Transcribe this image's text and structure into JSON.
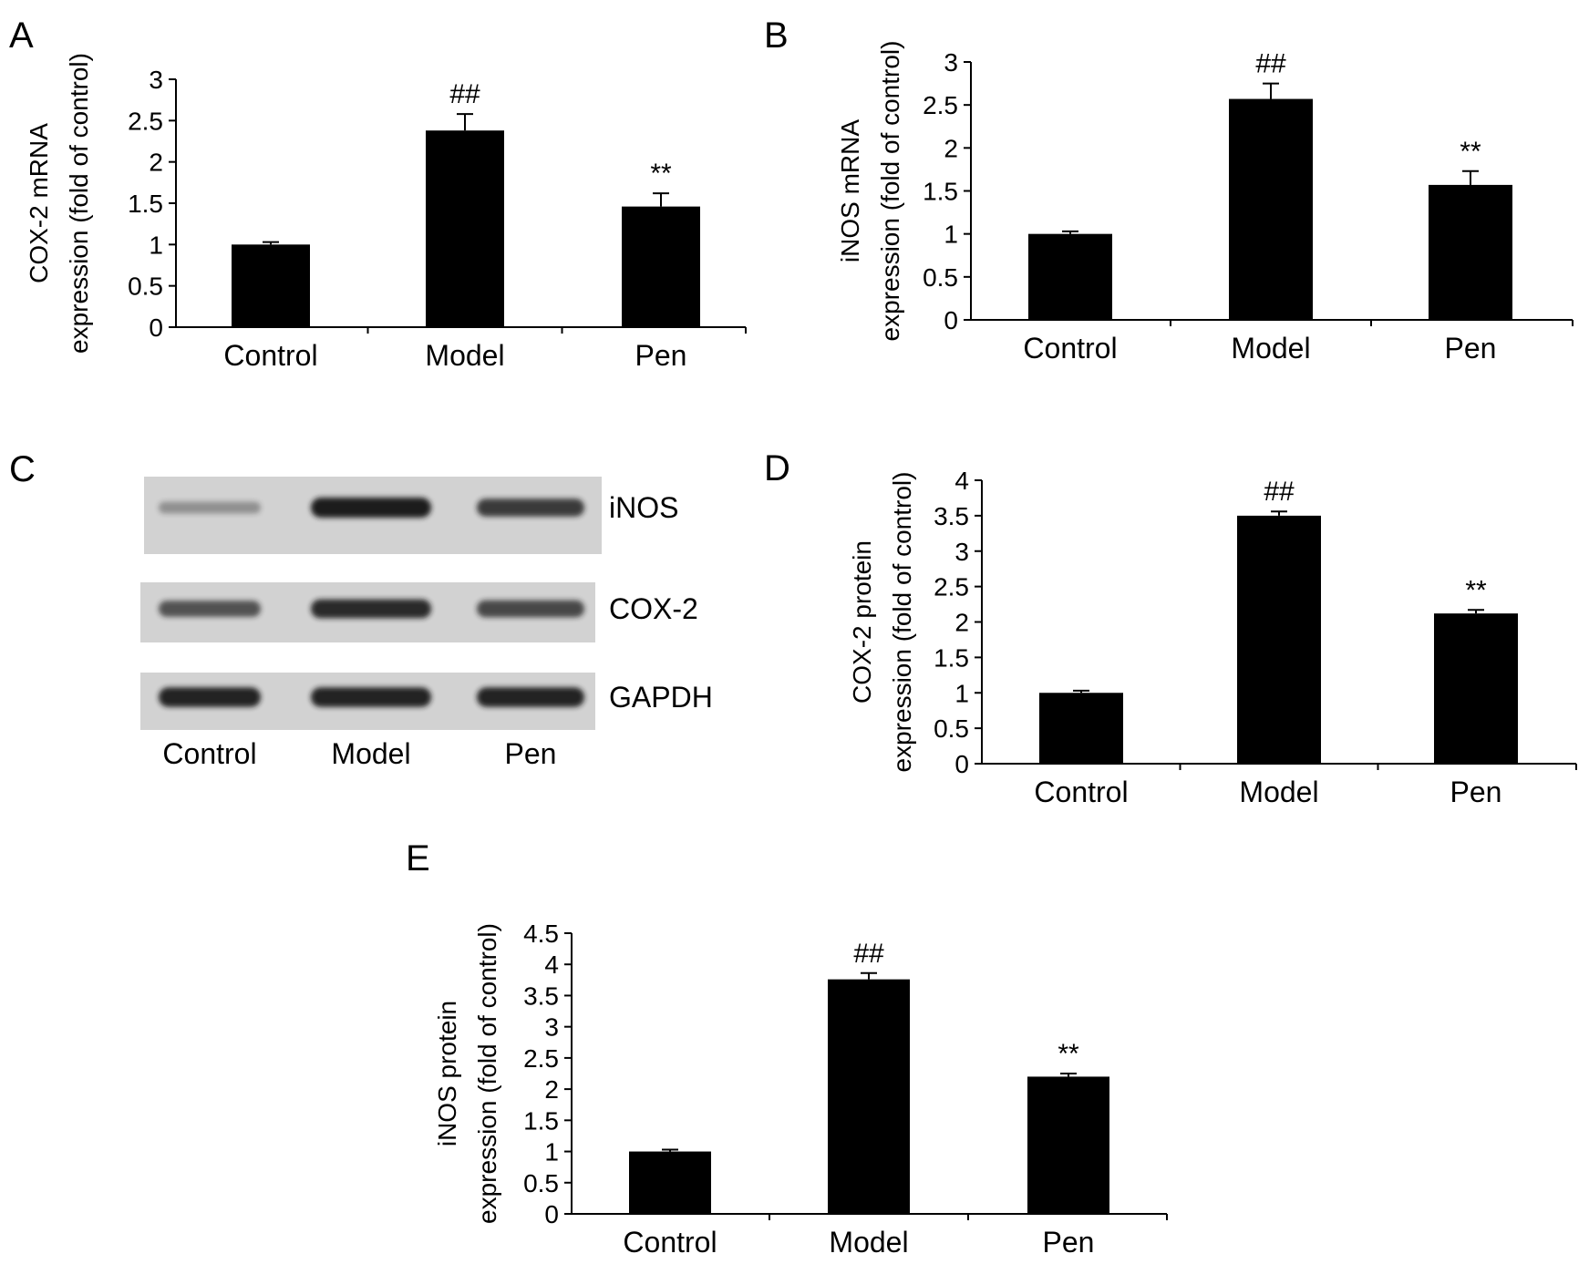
{
  "colors": {
    "bar": "#000000",
    "blot_bg": "#d2d2d2",
    "band": "#1a1a1a"
  },
  "chart_data": [
    {
      "panel": "A",
      "type": "bar",
      "categories": [
        "Control",
        "Model",
        "Pen"
      ],
      "values": [
        1.0,
        2.38,
        1.46
      ],
      "errors": [
        0.03,
        0.2,
        0.16
      ],
      "annotations": [
        "",
        "##",
        "**"
      ],
      "ylabel_lines": [
        "COX-2 mRNA",
        "expression (fold of control)"
      ],
      "ylim": [
        0,
        3
      ],
      "yticks": [
        0,
        0.5,
        1,
        1.5,
        2,
        2.5,
        3
      ]
    },
    {
      "panel": "B",
      "type": "bar",
      "categories": [
        "Control",
        "Model",
        "Pen"
      ],
      "values": [
        1.0,
        2.57,
        1.57
      ],
      "errors": [
        0.03,
        0.18,
        0.16
      ],
      "annotations": [
        "",
        "##",
        "**"
      ],
      "ylabel_lines": [
        "iNOS mRNA",
        "expression (fold of control)"
      ],
      "ylim": [
        0,
        3
      ],
      "yticks": [
        0,
        0.5,
        1,
        1.5,
        2,
        2.5,
        3
      ]
    },
    {
      "panel": "D",
      "type": "bar",
      "categories": [
        "Control",
        "Model",
        "Pen"
      ],
      "values": [
        1.0,
        3.5,
        2.12
      ],
      "errors": [
        0.03,
        0.06,
        0.05
      ],
      "annotations": [
        "",
        "##",
        "**"
      ],
      "ylabel_lines": [
        "COX-2 protein",
        "expression (fold of control)"
      ],
      "ylim": [
        0,
        4
      ],
      "yticks": [
        0,
        0.5,
        1,
        1.5,
        2,
        2.5,
        3,
        3.5,
        4
      ]
    },
    {
      "panel": "E",
      "type": "bar",
      "categories": [
        "Control",
        "Model",
        "Pen"
      ],
      "values": [
        1.0,
        3.76,
        2.2
      ],
      "errors": [
        0.03,
        0.1,
        0.05
      ],
      "annotations": [
        "",
        "##",
        "**"
      ],
      "ylabel_lines": [
        "iNOS protein",
        "expression (fold of control)"
      ],
      "ylim": [
        0,
        4.5
      ],
      "yticks": [
        0,
        0.5,
        1,
        1.5,
        2,
        2.5,
        3,
        3.5,
        4,
        4.5
      ]
    }
  ],
  "blot": {
    "panel": "C",
    "lanes": [
      "Control",
      "Model",
      "Pen"
    ],
    "rows": [
      {
        "label": "iNOS",
        "intensities": [
          0.25,
          1.0,
          0.8
        ]
      },
      {
        "label": "COX-2",
        "intensities": [
          0.65,
          0.9,
          0.72
        ]
      },
      {
        "label": "GAPDH",
        "intensities": [
          0.95,
          0.95,
          0.95
        ]
      }
    ]
  }
}
